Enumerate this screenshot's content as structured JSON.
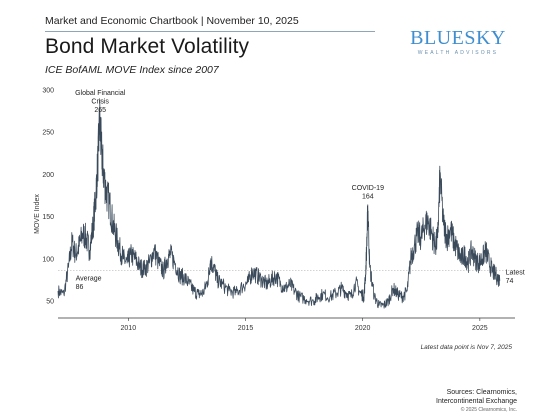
{
  "header": {
    "chartbook": "Market and Economic Chartbook | November 10, 2025",
    "title": "Bond Market Volatility",
    "subtitle": "ICE BofAML MOVE Index since 2007"
  },
  "logo": {
    "name": "BLUESKY",
    "tagline": "WEALTH ADVISORS"
  },
  "footer": {
    "latest_note": "Latest data point is Nov 7, 2025",
    "sources_line1": "Sources: Clearnomics,",
    "sources_line2": "Intercontinental Exchange",
    "copyright": "© 2025 Clearnomics, Inc."
  },
  "colors": {
    "series": "#3a4a5a",
    "reference": "#b8b8b8",
    "axis": "#333333"
  },
  "chart_data": {
    "type": "line",
    "title": "Bond Market Volatility",
    "ylabel": "MOVE Index",
    "xlim": [
      2007.0,
      2026.5
    ],
    "ylim": [
      30,
      300
    ],
    "yticks": [
      50,
      100,
      150,
      200,
      250,
      300
    ],
    "xticks": [
      2010,
      2015,
      2020,
      2025
    ],
    "reference_line": {
      "value": 86
    },
    "annotations": [
      {
        "lines": [
          "Global Financial",
          "Crisis",
          "265"
        ],
        "x": 2008.8,
        "y": 265
      },
      {
        "lines": [
          "COVID-19",
          "164"
        ],
        "x": 2020.2,
        "y": 164
      },
      {
        "lines": [
          "Average",
          "86"
        ],
        "x": 2008.2,
        "y": 86
      },
      {
        "lines": [
          "Latest",
          "74"
        ],
        "x": 2025.85,
        "y": 74
      }
    ],
    "series": [
      {
        "x": [
          2007.0,
          2007.25,
          2007.45,
          2007.6,
          2007.75,
          2007.9,
          2008.05,
          2008.2,
          2008.35,
          2008.5,
          2008.6,
          2008.7,
          2008.78,
          2008.85,
          2008.95,
          2009.05,
          2009.2,
          2009.35,
          2009.5,
          2009.65,
          2009.8,
          2009.95,
          2010.1,
          2010.3,
          2010.5,
          2010.7,
          2010.9,
          2011.1,
          2011.3,
          2011.5,
          2011.65,
          2011.8,
          2012.0,
          2012.2,
          2012.4,
          2012.6,
          2012.8,
          2013.0,
          2013.2,
          2013.4,
          2013.5,
          2013.65,
          2013.8,
          2014.0,
          2014.3,
          2014.6,
          2014.9,
          2015.1,
          2015.3,
          2015.5,
          2015.7,
          2015.9,
          2016.1,
          2016.3,
          2016.5,
          2016.7,
          2016.9,
          2017.1,
          2017.3,
          2017.6,
          2017.9,
          2018.1,
          2018.3,
          2018.6,
          2018.9,
          2019.1,
          2019.3,
          2019.5,
          2019.7,
          2019.9,
          2020.05,
          2020.12,
          2020.18,
          2020.22,
          2020.3,
          2020.5,
          2020.7,
          2020.9,
          2021.1,
          2021.3,
          2021.5,
          2021.7,
          2021.9,
          2022.05,
          2022.2,
          2022.35,
          2022.5,
          2022.65,
          2022.8,
          2022.95,
          2023.1,
          2023.2,
          2023.3,
          2023.45,
          2023.6,
          2023.75,
          2023.9,
          2024.05,
          2024.2,
          2024.35,
          2024.5,
          2024.65,
          2024.8,
          2024.95,
          2025.1,
          2025.25,
          2025.4,
          2025.55,
          2025.7,
          2025.85
        ],
        "y": [
          62,
          58,
          90,
          120,
          105,
          115,
          130,
          125,
          110,
          140,
          170,
          215,
          265,
          230,
          200,
          180,
          165,
          140,
          125,
          110,
          100,
          95,
          105,
          100,
          90,
          88,
          95,
          110,
          95,
          85,
          100,
          105,
          95,
          80,
          78,
          70,
          62,
          58,
          60,
          75,
          98,
          90,
          75,
          70,
          62,
          60,
          68,
          72,
          85,
          80,
          75,
          70,
          75,
          80,
          70,
          65,
          70,
          62,
          55,
          52,
          50,
          55,
          58,
          55,
          60,
          65,
          60,
          55,
          72,
          60,
          55,
          80,
          120,
          164,
          90,
          55,
          45,
          45,
          50,
          65,
          58,
          55,
          62,
          100,
          115,
          130,
          125,
          140,
          145,
          130,
          115,
          125,
          198,
          140,
          125,
          135,
          120,
          110,
          100,
          105,
          95,
          110,
          100,
          95,
          100,
          110,
          95,
          85,
          80,
          74
        ]
      }
    ]
  }
}
